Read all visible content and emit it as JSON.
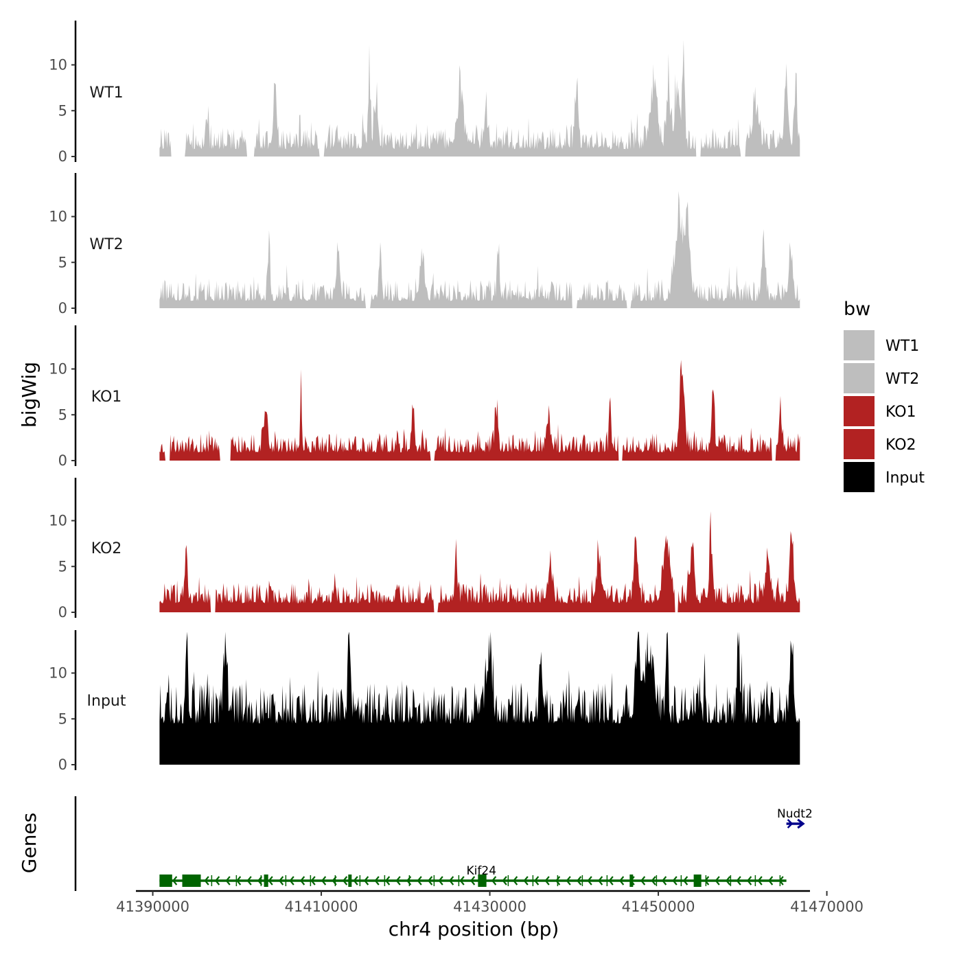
{
  "chart_data": {
    "type": "area",
    "chromosome": "chr4",
    "xlabel": "chr4 position (bp)",
    "ylabel": "bigWig",
    "genes_label": "Genes",
    "xlim": [
      41388000,
      41468000
    ],
    "x_ticks": [
      "41390000",
      "41410000",
      "41430000",
      "41450000",
      "41470000"
    ],
    "x_tick_values": [
      41390000,
      41410000,
      41430000,
      41450000,
      41470000
    ],
    "ylim": [
      0,
      14.5
    ],
    "y_ticks": [
      "0",
      "5",
      "10"
    ],
    "y_tick_values": [
      0,
      5,
      10
    ],
    "bin_width_bp": 100,
    "data_start": 41390800,
    "data_end": 41466800,
    "legend": {
      "title": "bw",
      "entries": [
        {
          "label": "WT1",
          "color": "#bebebe"
        },
        {
          "label": "WT2",
          "color": "#bebebe"
        },
        {
          "label": "KO1",
          "color": "#b22222"
        },
        {
          "label": "KO2",
          "color": "#b22222"
        },
        {
          "label": "Input",
          "color": "#000000"
        }
      ]
    },
    "series": [
      {
        "name": "WT1",
        "color": "#bebebe",
        "seed": 11,
        "baseline": 0.8,
        "noise": 2.4,
        "peaks": [
          [
            41396400,
            5.5,
            200
          ],
          [
            41404500,
            8.0,
            250
          ],
          [
            41415700,
            10.0,
            200
          ],
          [
            41416500,
            7.0,
            300
          ],
          [
            41426500,
            8.8,
            400
          ],
          [
            41429500,
            5.0,
            300
          ],
          [
            41440300,
            8.5,
            250
          ],
          [
            41449500,
            8.0,
            600
          ],
          [
            41451200,
            9.0,
            300
          ],
          [
            41453000,
            13.0,
            200
          ],
          [
            41452200,
            8.0,
            400
          ],
          [
            41461500,
            6.0,
            500
          ],
          [
            41465200,
            9.5,
            300
          ],
          [
            41466300,
            9.0,
            200
          ]
        ],
        "gaps": [
          [
            41392200,
            41393800
          ],
          [
            41401200,
            41402000
          ],
          [
            41409800,
            41410300
          ],
          [
            41454500,
            41455000
          ],
          [
            41459800,
            41460300
          ]
        ]
      },
      {
        "name": "WT2",
        "color": "#bebebe",
        "seed": 23,
        "baseline": 0.8,
        "noise": 2.3,
        "peaks": [
          [
            41403800,
            8.5,
            200
          ],
          [
            41412000,
            6.0,
            300
          ],
          [
            41417000,
            7.0,
            200
          ],
          [
            41422000,
            6.0,
            300
          ],
          [
            41431000,
            6.5,
            200
          ],
          [
            41452500,
            10.5,
            700
          ],
          [
            41453500,
            9.0,
            400
          ],
          [
            41462500,
            6.0,
            300
          ],
          [
            41465700,
            8.0,
            300
          ]
        ],
        "gaps": [
          [
            41415300,
            41415800
          ],
          [
            41439800,
            41440300
          ],
          [
            41446300,
            41446700
          ]
        ]
      },
      {
        "name": "KO1",
        "color": "#b22222",
        "seed": 37,
        "baseline": 0.9,
        "noise": 2.1,
        "peaks": [
          [
            41403400,
            6.5,
            300
          ],
          [
            41407600,
            7.5,
            150
          ],
          [
            41420900,
            6.2,
            200
          ],
          [
            41430800,
            6.0,
            250
          ],
          [
            41437000,
            5.0,
            300
          ],
          [
            41444300,
            7.6,
            150
          ],
          [
            41452800,
            9.5,
            400
          ],
          [
            41456500,
            9.8,
            200
          ],
          [
            41464500,
            4.5,
            300
          ]
        ],
        "gaps": [
          [
            41391500,
            41392000
          ],
          [
            41398000,
            41399200
          ],
          [
            41423000,
            41423400
          ],
          [
            41445300,
            41445700
          ],
          [
            41463500,
            41463900
          ]
        ]
      },
      {
        "name": "KO2",
        "color": "#b22222",
        "seed": 53,
        "baseline": 1.0,
        "noise": 2.2,
        "peaks": [
          [
            41394000,
            5.5,
            200
          ],
          [
            41426000,
            6.5,
            200
          ],
          [
            41437200,
            6.0,
            300
          ],
          [
            41443000,
            6.5,
            400
          ],
          [
            41447300,
            7.5,
            300
          ],
          [
            41451000,
            7.5,
            600
          ],
          [
            41454000,
            8.5,
            300
          ],
          [
            41456200,
            8.7,
            250
          ],
          [
            41463000,
            6.0,
            400
          ],
          [
            41465800,
            8.5,
            300
          ]
        ],
        "gaps": [
          [
            41396900,
            41397400
          ],
          [
            41423400,
            41423800
          ],
          [
            41452000,
            41452300
          ]
        ]
      },
      {
        "name": "Input",
        "color": "#000000",
        "seed": 71,
        "baseline": 4.5,
        "noise": 4.5,
        "peaks": [
          [
            41394100,
            14.0,
            150
          ],
          [
            41398600,
            9.0,
            300
          ],
          [
            41413300,
            10.0,
            200
          ],
          [
            41430000,
            9.0,
            400
          ],
          [
            41436000,
            10.5,
            200
          ],
          [
            41447600,
            11.0,
            400
          ],
          [
            41449000,
            9.0,
            700
          ],
          [
            41451000,
            12.5,
            200
          ],
          [
            41459500,
            10.5,
            200
          ],
          [
            41465800,
            10.0,
            300
          ]
        ],
        "gaps": []
      }
    ],
    "genes": [
      {
        "name": "Kif24",
        "strand": "-",
        "start": 41390800,
        "end": 41465200,
        "color": "#006400",
        "exons": [
          [
            41390800,
            41392300
          ],
          [
            41393500,
            41395700
          ],
          [
            41403200,
            41403700
          ],
          [
            41413200,
            41413600
          ],
          [
            41428600,
            41429600
          ],
          [
            41446600,
            41447000
          ],
          [
            41454200,
            41455100
          ]
        ]
      },
      {
        "name": "Nudt2",
        "strand": "+",
        "start": 41465200,
        "end": 41467200,
        "color": "#00008b",
        "exons": []
      }
    ]
  }
}
